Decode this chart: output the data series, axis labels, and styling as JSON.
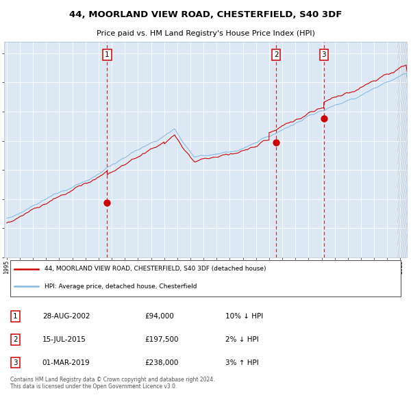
{
  "title": "44, MOORLAND VIEW ROAD, CHESTERFIELD, S40 3DF",
  "subtitle": "Price paid vs. HM Land Registry's House Price Index (HPI)",
  "plot_bg_color": "#dce9f5",
  "red_line_label": "44, MOORLAND VIEW ROAD, CHESTERFIELD, S40 3DF (detached house)",
  "blue_line_label": "HPI: Average price, detached house, Chesterfield",
  "copyright_text": "Contains HM Land Registry data © Crown copyright and database right 2024.\nThis data is licensed under the Open Government Licence v3.0.",
  "transactions": [
    {
      "num": 1,
      "date": "28-AUG-2002",
      "price": "£94,000",
      "hpi": "10% ↓ HPI",
      "year": 2002.65
    },
    {
      "num": 2,
      "date": "15-JUL-2015",
      "price": "£197,500",
      "hpi": "2% ↓ HPI",
      "year": 2015.54
    },
    {
      "num": 3,
      "date": "01-MAR-2019",
      "price": "£238,000",
      "hpi": "3% ↑ HPI",
      "year": 2019.17
    }
  ],
  "transaction_values": [
    94000,
    197500,
    238000
  ],
  "ylim": [
    0,
    370000
  ],
  "yticks": [
    0,
    50000,
    100000,
    150000,
    200000,
    250000,
    300000,
    350000
  ],
  "x_start": 1995.0,
  "x_end": 2025.5,
  "xtick_years": [
    1995,
    1996,
    1997,
    1998,
    1999,
    2000,
    2001,
    2002,
    2003,
    2004,
    2005,
    2006,
    2007,
    2008,
    2009,
    2010,
    2011,
    2012,
    2013,
    2014,
    2015,
    2016,
    2017,
    2018,
    2019,
    2020,
    2021,
    2022,
    2023,
    2024,
    2025
  ],
  "grid_color": "#c8d8e8",
  "spine_color": "#b0c0d0"
}
